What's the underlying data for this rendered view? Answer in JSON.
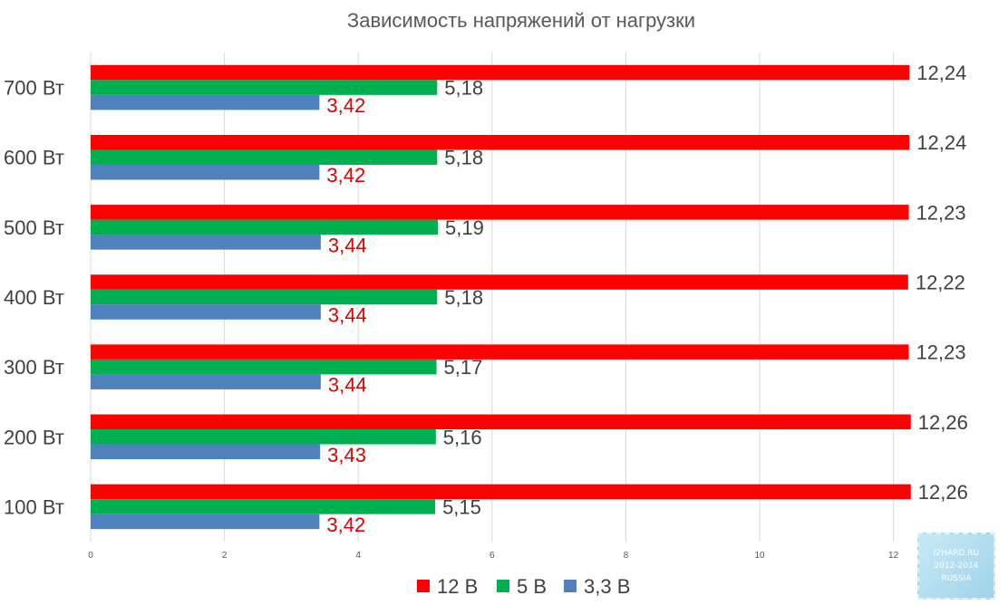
{
  "chart_data": {
    "type": "bar",
    "orientation": "horizontal",
    "title": "Зависимость напряжений от нагрузки",
    "categories": [
      "100 Вт",
      "200 Вт",
      "300 Вт",
      "400 Вт",
      "500 Вт",
      "600 Вт",
      "700 Вт"
    ],
    "series": [
      {
        "name": "12 В",
        "color": "#ff0000",
        "label_color": "#404040",
        "values": [
          12.26,
          12.26,
          12.23,
          12.22,
          12.23,
          12.24,
          12.24
        ],
        "labels": [
          "12,26",
          "12,26",
          "12,23",
          "12,22",
          "12,23",
          "12,24",
          "12,24"
        ]
      },
      {
        "name": "5 В",
        "color": "#00b050",
        "label_color": "#404040",
        "values": [
          5.15,
          5.16,
          5.17,
          5.18,
          5.19,
          5.18,
          5.18
        ],
        "labels": [
          "5,15",
          "5,16",
          "5,17",
          "5,18",
          "5,19",
          "5,18",
          "5,18"
        ]
      },
      {
        "name": "3,3 В",
        "color": "#4f81bd",
        "label_color": "#e00000",
        "values": [
          3.42,
          3.43,
          3.44,
          3.44,
          3.44,
          3.42,
          3.42
        ],
        "labels": [
          "3,42",
          "3,43",
          "3,44",
          "3,44",
          "3,44",
          "3,42",
          "3,42"
        ]
      }
    ],
    "xlim": [
      0,
      12.5
    ],
    "xticks": [
      0,
      2,
      4,
      6,
      8,
      10,
      12
    ],
    "grid": true,
    "legend_position": "bottom"
  },
  "watermark": {
    "lines": [
      "I2HARD.RU",
      "2012-2014",
      "RUSSIA"
    ]
  }
}
